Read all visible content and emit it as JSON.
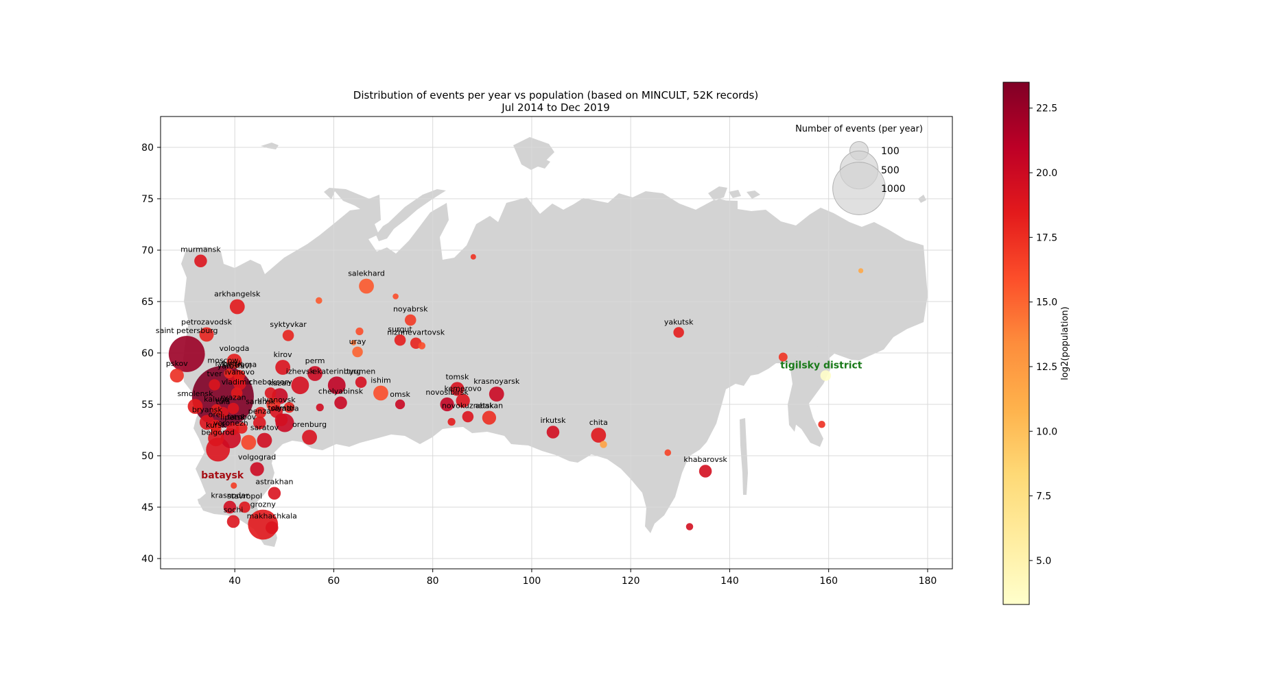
{
  "chart_data": {
    "type": "scatter",
    "title": "Distribution of events per year vs population (based on MINCULT, 52K records)",
    "subtitle": "Jul 2014 to Dec 2019",
    "xlim": [
      25,
      185
    ],
    "ylim": [
      39,
      83
    ],
    "x_ticks": [
      40,
      60,
      80,
      100,
      120,
      140,
      160,
      180
    ],
    "y_ticks": [
      40,
      45,
      50,
      55,
      60,
      65,
      70,
      75,
      80
    ],
    "grid": true,
    "legend": {
      "title": "Number of events (per year)",
      "placement": "top-right",
      "entries": [
        {
          "label": "100",
          "events": 100
        },
        {
          "label": "500",
          "events": 500
        },
        {
          "label": "1000",
          "events": 1000
        }
      ]
    },
    "colorbar": {
      "label": "log2(population)",
      "range": [
        3.3,
        23.5
      ],
      "ticks": [
        "5.0",
        "7.5",
        "10.0",
        "12.5",
        "15.0",
        "17.5",
        "20.0",
        "22.5"
      ],
      "colormap": [
        "#ffffcc",
        "#ffeda0",
        "#fed976",
        "#feb24c",
        "#fd8d3c",
        "#fc4e2a",
        "#e31a1c",
        "#bd0026",
        "#800026"
      ]
    },
    "colors": {
      "land": "#d3d3d3",
      "grid": "#d9d9d9",
      "highlight_bataysk": "#a50f15",
      "highlight_tigilsky": "#1a7a1a"
    },
    "annotations": [
      {
        "text": "bataysk",
        "lon": 37.5,
        "lat": 47.8,
        "color": "#a50f15"
      },
      {
        "text": "tigilsky district",
        "lon": 158.5,
        "lat": 58.5,
        "color": "#1a7a1a"
      }
    ],
    "points": [
      {
        "name": "moscow",
        "lon": 37.6,
        "lat": 55.75,
        "events": 1400,
        "log2pop": 23.5
      },
      {
        "name": "saint petersburg",
        "lon": 30.3,
        "lat": 59.9,
        "events": 450,
        "log2pop": 22.4
      },
      {
        "name": "murmansk",
        "lon": 33.1,
        "lat": 68.95,
        "events": 40,
        "log2pop": 18.9
      },
      {
        "name": "arkhangelsk",
        "lon": 40.5,
        "lat": 64.5,
        "events": 60,
        "log2pop": 18.5
      },
      {
        "name": "petrozavodsk",
        "lon": 34.3,
        "lat": 61.8,
        "events": 55,
        "log2pop": 18.0
      },
      {
        "name": "pskov",
        "lon": 28.3,
        "lat": 57.8,
        "events": 50,
        "log2pop": 17.6
      },
      {
        "name": "vologda",
        "lon": 39.9,
        "lat": 59.2,
        "events": 60,
        "log2pop": 18.3
      },
      {
        "name": "rybinsk",
        "lon": 38.8,
        "lat": 58.0,
        "events": 20,
        "log2pop": 17.7
      },
      {
        "name": "yaroslavl",
        "lon": 39.9,
        "lat": 57.6,
        "events": 40,
        "log2pop": 19.5
      },
      {
        "name": "kostroma",
        "lon": 40.9,
        "lat": 57.8,
        "events": 30,
        "log2pop": 18.2
      },
      {
        "name": "ivanovo",
        "lon": 41.0,
        "lat": 57.0,
        "events": 40,
        "log2pop": 18.9
      },
      {
        "name": "tver",
        "lon": 35.9,
        "lat": 56.9,
        "events": 30,
        "log2pop": 18.9
      },
      {
        "name": "vladimir",
        "lon": 40.4,
        "lat": 56.1,
        "events": 30,
        "log2pop": 18.5
      },
      {
        "name": "smolensk",
        "lon": 32.0,
        "lat": 54.8,
        "events": 60,
        "log2pop": 18.5
      },
      {
        "name": "kaluga",
        "lon": 36.3,
        "lat": 54.5,
        "events": 25,
        "log2pop": 18.3
      },
      {
        "name": "tula",
        "lon": 37.6,
        "lat": 54.2,
        "events": 30,
        "log2pop": 18.9
      },
      {
        "name": "ryazan",
        "lon": 39.7,
        "lat": 54.6,
        "events": 30,
        "log2pop": 19.0
      },
      {
        "name": "bryansk",
        "lon": 34.4,
        "lat": 53.25,
        "events": 60,
        "log2pop": 18.9
      },
      {
        "name": "orel",
        "lon": 36.1,
        "lat": 52.95,
        "events": 30,
        "log2pop": 18.4
      },
      {
        "name": "lipetsk",
        "lon": 39.6,
        "lat": 52.6,
        "events": 40,
        "log2pop": 19.0
      },
      {
        "name": "kursk",
        "lon": 36.2,
        "lat": 51.7,
        "events": 70,
        "log2pop": 18.9
      },
      {
        "name": "voronezh",
        "lon": 39.2,
        "lat": 51.7,
        "events": 120,
        "log2pop": 19.9
      },
      {
        "name": "belgorod",
        "lon": 36.6,
        "lat": 50.6,
        "events": 180,
        "log2pop": 19.0
      },
      {
        "name": "tambov",
        "lon": 41.4,
        "lat": 52.7,
        "events": 30,
        "log2pop": 18.4
      },
      {
        "name": "penza",
        "lon": 45.0,
        "lat": 53.2,
        "events": 40,
        "log2pop": 19.0
      },
      {
        "name": "saransk",
        "lon": 45.2,
        "lat": 54.2,
        "events": 30,
        "log2pop": 18.4
      },
      {
        "name": "ulyanovsk",
        "lon": 48.4,
        "lat": 54.3,
        "events": 40,
        "log2pop": 19.1
      },
      {
        "name": "cheboksary",
        "lon": 47.2,
        "lat": 56.1,
        "events": 30,
        "log2pop": 18.9
      },
      {
        "name": "kazan",
        "lon": 49.1,
        "lat": 55.8,
        "events": 70,
        "log2pop": 20.2
      },
      {
        "name": "samara",
        "lon": 50.1,
        "lat": 53.2,
        "events": 100,
        "log2pop": 20.1
      },
      {
        "name": "tolyatti",
        "lon": 49.4,
        "lat": 53.5,
        "events": 40,
        "log2pop": 19.5
      },
      {
        "name": "saratov",
        "lon": 46.0,
        "lat": 51.5,
        "events": 60,
        "log2pop": 19.7
      },
      {
        "name": "volgograd",
        "lon": 44.5,
        "lat": 48.7,
        "events": 50,
        "log2pop": 20.0
      },
      {
        "name": "bataysk",
        "lon": 39.8,
        "lat": 47.1,
        "events": 5,
        "log2pop": 16.8
      },
      {
        "name": "astrakhan",
        "lon": 48.0,
        "lat": 46.35,
        "events": 40,
        "log2pop": 19.1
      },
      {
        "name": "krasnodar",
        "lon": 39.0,
        "lat": 45.0,
        "events": 40,
        "log2pop": 19.6
      },
      {
        "name": "stavropol",
        "lon": 42.0,
        "lat": 45.0,
        "events": 30,
        "log2pop": 18.8
      },
      {
        "name": "sochi",
        "lon": 39.7,
        "lat": 43.6,
        "events": 40,
        "log2pop": 18.9
      },
      {
        "name": "grozny",
        "lon": 45.7,
        "lat": 43.3,
        "events": 300,
        "log2pop": 18.6
      },
      {
        "name": "makhachkala",
        "lon": 47.5,
        "lat": 43.0,
        "events": 40,
        "log2pop": 19.0
      },
      {
        "name": "izhevsk",
        "lon": 53.2,
        "lat": 56.85,
        "events": 90,
        "log2pop": 19.4
      },
      {
        "name": "kirov",
        "lon": 49.7,
        "lat": 58.6,
        "events": 60,
        "log2pop": 19.0
      },
      {
        "name": "perm",
        "lon": 56.2,
        "lat": 58.0,
        "events": 60,
        "log2pop": 20.0
      },
      {
        "name": "ekaterinburg",
        "lon": 60.6,
        "lat": 56.85,
        "events": 90,
        "log2pop": 20.8
      },
      {
        "name": "chelyabinsk",
        "lon": 61.4,
        "lat": 55.15,
        "events": 40,
        "log2pop": 20.2
      },
      {
        "name": "orenburg",
        "lon": 55.1,
        "lat": 51.8,
        "events": 60,
        "log2pop": 19.2
      },
      {
        "name": "syktyvkar",
        "lon": 50.8,
        "lat": 61.7,
        "events": 30,
        "log2pop": 18.0
      },
      {
        "name": "salekhard",
        "lon": 66.6,
        "lat": 66.5,
        "events": 60,
        "log2pop": 15.5
      },
      {
        "name": "uray",
        "lon": 64.8,
        "lat": 60.1,
        "events": 25,
        "log2pop": 15.1
      },
      {
        "name": "tyumen",
        "lon": 65.5,
        "lat": 57.15,
        "events": 30,
        "log2pop": 19.4
      },
      {
        "name": "ishim",
        "lon": 69.5,
        "lat": 56.1,
        "events": 60,
        "log2pop": 16.0
      },
      {
        "name": "noyabrsk",
        "lon": 75.5,
        "lat": 63.2,
        "events": 30,
        "log2pop": 16.9
      },
      {
        "name": "surgut",
        "lon": 73.4,
        "lat": 61.25,
        "events": 30,
        "log2pop": 18.3
      },
      {
        "name": "nizhnevartovsk",
        "lon": 76.6,
        "lat": 60.95,
        "events": 30,
        "log2pop": 18.0
      },
      {
        "name": "omsk",
        "lon": 73.4,
        "lat": 55.0,
        "events": 20,
        "log2pop": 20.2
      },
      {
        "name": "novosibirsk",
        "lon": 82.9,
        "lat": 55.0,
        "events": 50,
        "log2pop": 20.6
      },
      {
        "name": "tomsk",
        "lon": 84.95,
        "lat": 56.5,
        "events": 50,
        "log2pop": 19.2
      },
      {
        "name": "kemerovo",
        "lon": 86.1,
        "lat": 55.35,
        "events": 50,
        "log2pop": 19.0
      },
      {
        "name": "novokuznetsk",
        "lon": 87.1,
        "lat": 53.8,
        "events": 30,
        "log2pop": 19.0
      },
      {
        "name": "abakan",
        "lon": 91.4,
        "lat": 53.7,
        "events": 50,
        "log2pop": 17.5
      },
      {
        "name": "krasnoyarsk",
        "lon": 92.9,
        "lat": 56.0,
        "events": 60,
        "log2pop": 20.1
      },
      {
        "name": "irkutsk",
        "lon": 104.3,
        "lat": 52.3,
        "events": 40,
        "log2pop": 19.6
      },
      {
        "name": "chita",
        "lon": 113.5,
        "lat": 52.0,
        "events": 60,
        "log2pop": 18.7
      },
      {
        "name": "yakutsk",
        "lon": 129.7,
        "lat": 62.0,
        "events": 25,
        "log2pop": 18.3
      },
      {
        "name": "khabarovsk",
        "lon": 135.1,
        "lat": 48.5,
        "events": 40,
        "log2pop": 19.5
      },
      {
        "name": "tigilsky district",
        "lon": 159.4,
        "lat": 57.8,
        "events": 25,
        "log2pop": 3.5
      },
      {
        "name": "",
        "lon": 150.8,
        "lat": 59.6,
        "events": 15,
        "log2pop": 17.2
      },
      {
        "name": "",
        "lon": 158.6,
        "lat": 53.05,
        "events": 8,
        "log2pop": 17.4
      },
      {
        "name": "",
        "lon": 131.9,
        "lat": 43.1,
        "events": 8,
        "log2pop": 19.5
      },
      {
        "name": "",
        "lon": 114.5,
        "lat": 51.1,
        "events": 8,
        "log2pop": 12.0
      },
      {
        "name": "",
        "lon": 127.5,
        "lat": 50.3,
        "events": 6,
        "log2pop": 16.5
      },
      {
        "name": "",
        "lon": 88.2,
        "lat": 69.35,
        "events": 3,
        "log2pop": 17.3
      },
      {
        "name": "",
        "lon": 64.0,
        "lat": 61.0,
        "events": 3,
        "log2pop": 14.5
      },
      {
        "name": "",
        "lon": 72.5,
        "lat": 65.5,
        "events": 4,
        "log2pop": 16.0
      },
      {
        "name": "",
        "lon": 57.0,
        "lat": 65.1,
        "events": 6,
        "log2pop": 15.5
      },
      {
        "name": "",
        "lon": 65.2,
        "lat": 62.1,
        "events": 10,
        "log2pop": 16.0
      },
      {
        "name": "",
        "lon": 77.8,
        "lat": 60.7,
        "events": 8,
        "log2pop": 16.0
      },
      {
        "name": "",
        "lon": 83.8,
        "lat": 53.3,
        "events": 10,
        "log2pop": 18.4
      },
      {
        "name": "",
        "lon": 166.5,
        "lat": 68.0,
        "events": 2,
        "log2pop": 11.5
      },
      {
        "name": "",
        "lon": 36.2,
        "lat": 52.6,
        "events": 25,
        "log2pop": 18.2
      },
      {
        "name": "",
        "lon": 42.8,
        "lat": 51.3,
        "events": 60,
        "log2pop": 16.5
      },
      {
        "name": "",
        "lon": 47.8,
        "lat": 55.0,
        "events": 50,
        "log2pop": 17.5
      },
      {
        "name": "",
        "lon": 51.0,
        "lat": 54.7,
        "events": 25,
        "log2pop": 18.0
      },
      {
        "name": "",
        "lon": 57.2,
        "lat": 54.7,
        "events": 10,
        "log2pop": 19.8
      }
    ]
  }
}
